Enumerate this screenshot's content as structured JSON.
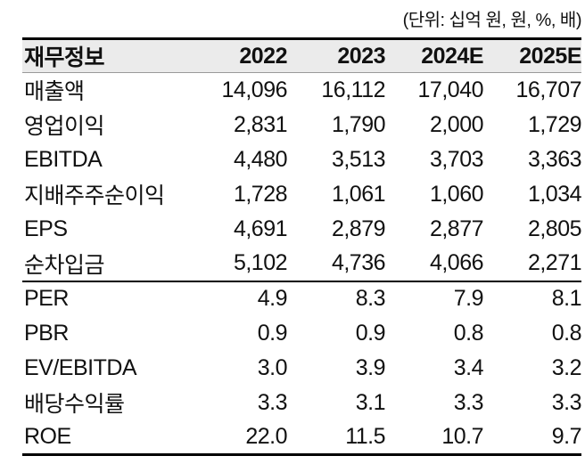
{
  "unit_note": "(단위: 십억 원, 원, %, 배)",
  "colors": {
    "header_background": "#ebebeb",
    "heavy_rule": "#000000",
    "header_underline": "#9a9a9a",
    "text": "#111111"
  },
  "chart_data": {
    "type": "table",
    "title": "재무정보",
    "columns": [
      "재무정보",
      "2022",
      "2023",
      "2024E",
      "2025E"
    ],
    "financial_rows": [
      {
        "label": "매출액",
        "values": [
          "14,096",
          "16,112",
          "17,040",
          "16,707"
        ]
      },
      {
        "label": "영업이익",
        "values": [
          "2,831",
          "1,790",
          "2,000",
          "1,729"
        ]
      },
      {
        "label": "EBITDA",
        "values": [
          "4,480",
          "3,513",
          "3,703",
          "3,363"
        ]
      },
      {
        "label": "지배주주순이익",
        "values": [
          "1,728",
          "1,061",
          "1,060",
          "1,034"
        ]
      },
      {
        "label": "EPS",
        "values": [
          "4,691",
          "2,879",
          "2,877",
          "2,805"
        ]
      },
      {
        "label": "순차입금",
        "values": [
          "5,102",
          "4,736",
          "4,066",
          "2,271"
        ]
      }
    ],
    "ratio_rows": [
      {
        "label": "PER",
        "values": [
          "4.9",
          "8.3",
          "7.9",
          "8.1"
        ]
      },
      {
        "label": "PBR",
        "values": [
          "0.9",
          "0.9",
          "0.8",
          "0.8"
        ]
      },
      {
        "label": "EV/EBITDA",
        "values": [
          "3.0",
          "3.9",
          "3.4",
          "3.2"
        ]
      },
      {
        "label": "배당수익률",
        "values": [
          "3.3",
          "3.1",
          "3.3",
          "3.3"
        ]
      },
      {
        "label": "ROE",
        "values": [
          "22.0",
          "11.5",
          "10.7",
          "9.7"
        ]
      }
    ]
  }
}
